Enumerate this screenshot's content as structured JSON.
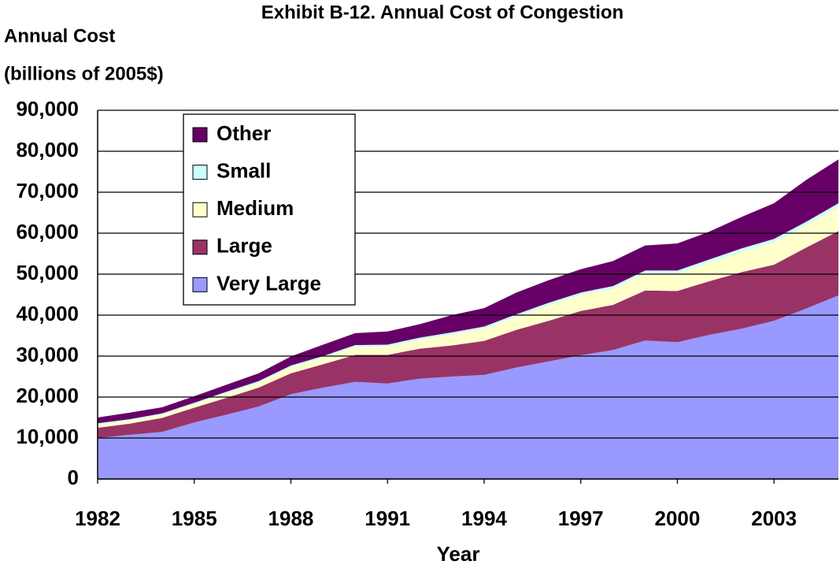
{
  "chart_data": {
    "type": "stacked_area",
    "title": "Exhibit B-12.  Annual Cost of Congestion",
    "y_label": [
      "Annual Cost",
      "(billions of 2005$)"
    ],
    "x_label": "Year",
    "x": [
      1982,
      1983,
      1984,
      1985,
      1986,
      1987,
      1988,
      1989,
      1990,
      1991,
      1992,
      1993,
      1994,
      1995,
      1996,
      1997,
      1998,
      1999,
      2000,
      2001,
      2002,
      2003,
      2004,
      2005
    ],
    "xlim": [
      1982,
      2005
    ],
    "xticks": [
      1982,
      1985,
      1988,
      1991,
      1994,
      1997,
      2000,
      2003
    ],
    "ylim": [
      0,
      90000
    ],
    "yticks": [
      0,
      {
        "value": 10000,
        "label": "10,000"
      },
      {
        "value": 20000,
        "label": "20,000"
      },
      {
        "value": 30000,
        "label": "30,000"
      },
      {
        "value": 40000,
        "label": "40,000"
      },
      {
        "value": 50000,
        "label": "50,000"
      },
      {
        "value": 60000,
        "label": "60,000"
      },
      {
        "value": 70000,
        "label": "70,000"
      },
      {
        "value": 80000,
        "label": "80,000"
      },
      {
        "value": 90000,
        "label": "90,000"
      }
    ],
    "grid": true,
    "legend": "upper left",
    "series": [
      {
        "name": "Very Large",
        "color": "#9999ff",
        "values": [
          10000,
          10800,
          11500,
          13800,
          15700,
          17700,
          20700,
          22300,
          23700,
          23300,
          24500,
          25000,
          25400,
          27200,
          28700,
          30200,
          31500,
          33800,
          33400,
          35200,
          36700,
          38600,
          41600,
          44800
        ]
      },
      {
        "name": "Large",
        "color": "#993366",
        "values": [
          2500,
          2700,
          3400,
          3600,
          4100,
          4600,
          5100,
          5700,
          6600,
          7000,
          7300,
          7600,
          8300,
          9200,
          9900,
          10800,
          11000,
          12200,
          12500,
          13100,
          13800,
          13700,
          14900,
          15700
        ]
      },
      {
        "name": "Medium",
        "color": "#ffffcc",
        "values": [
          800,
          800,
          800,
          900,
          1100,
          1200,
          1500,
          1600,
          1900,
          2000,
          2200,
          2700,
          3000,
          3200,
          3800,
          3900,
          3900,
          4200,
          4300,
          4600,
          5000,
          5500,
          5500,
          5900
        ]
      },
      {
        "name": "Small",
        "color": "#ccffff",
        "values": [
          300,
          300,
          300,
          300,
          400,
          400,
          400,
          400,
          500,
          500,
          500,
          500,
          500,
          600,
          600,
          600,
          700,
          700,
          700,
          700,
          800,
          800,
          800,
          900
        ]
      },
      {
        "name": "Other",
        "color": "#660066",
        "values": [
          1400,
          1600,
          1500,
          1600,
          1700,
          1900,
          2200,
          2800,
          2900,
          3200,
          3300,
          4200,
          4500,
          5300,
          5500,
          5700,
          6100,
          6100,
          6600,
          6800,
          7700,
          8700,
          10200,
          10700
        ]
      }
    ]
  }
}
